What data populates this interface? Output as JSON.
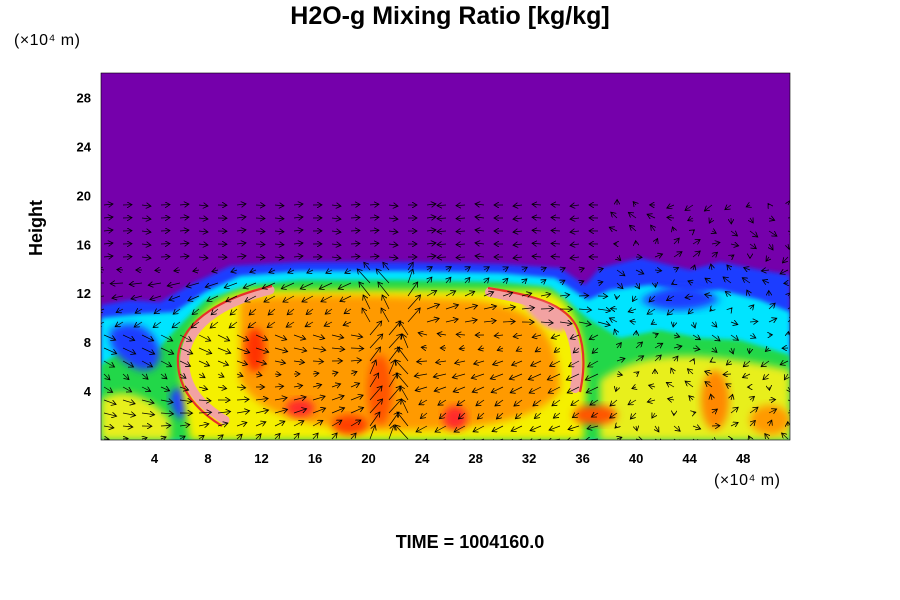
{
  "chart_data": {
    "type": "heatmap",
    "title": "H2O-g Mixing Ratio [kg/kg]",
    "ylabel": "Height",
    "y_unit": "(×10⁴ m)",
    "x_unit": "(×10⁴ m)",
    "xlim": [
      0,
      51.5
    ],
    "ylim": [
      0,
      30
    ],
    "x_ticks": [
      "4",
      "8",
      "12",
      "16",
      "20",
      "24",
      "28",
      "32",
      "36",
      "40",
      "44",
      "48"
    ],
    "y_ticks": [
      "4",
      "8",
      "12",
      "16",
      "20",
      "24",
      "28"
    ],
    "x_tick_values": [
      4,
      8,
      12,
      16,
      20,
      24,
      28,
      32,
      36,
      40,
      44,
      48
    ],
    "y_tick_values": [
      4,
      8,
      12,
      16,
      20,
      24,
      28
    ],
    "background_color": "#7500ab",
    "overlay": "wind vectors",
    "grid": false
  },
  "footer": {
    "time_label": "TIME = 1004160.0"
  }
}
